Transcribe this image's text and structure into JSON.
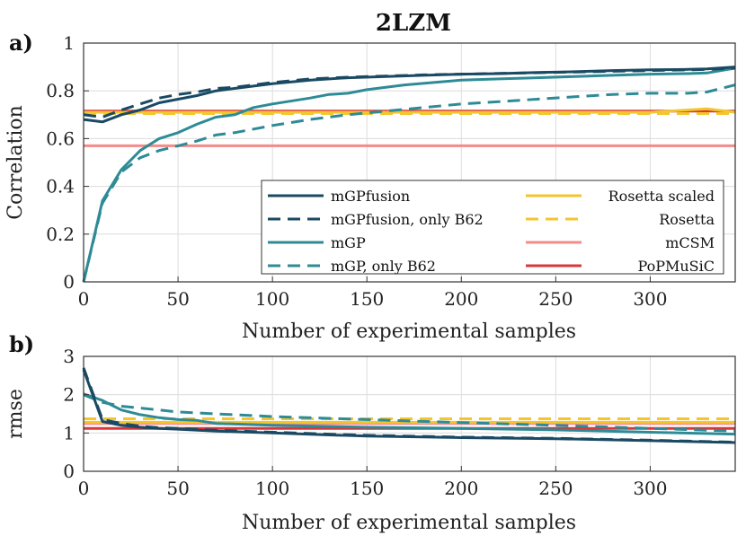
{
  "figure_title": "2LZM",
  "chart_data": [
    {
      "panel": "a)",
      "type": "line",
      "xlabel": "Number of experimental samples",
      "ylabel": "Correlation",
      "xlim": [
        0,
        345
      ],
      "ylim": [
        0,
        1
      ],
      "xticks": [
        "0",
        "50",
        "100",
        "150",
        "200",
        "250",
        "300"
      ],
      "yticks": [
        "0",
        "0.2",
        "0.4",
        "0.6",
        "0.8",
        "1"
      ],
      "grid": true,
      "legend_position": "bottom-right",
      "series": [
        {
          "name": "mGPfusion",
          "color": "#1a4a63",
          "dash": "solid",
          "x": [
            0,
            10,
            20,
            30,
            40,
            50,
            60,
            70,
            80,
            90,
            100,
            120,
            140,
            160,
            180,
            200,
            220,
            240,
            260,
            280,
            300,
            320,
            330,
            345
          ],
          "y": [
            0.68,
            0.67,
            0.7,
            0.72,
            0.75,
            0.765,
            0.78,
            0.8,
            0.81,
            0.82,
            0.83,
            0.845,
            0.855,
            0.86,
            0.865,
            0.87,
            0.872,
            0.877,
            0.88,
            0.885,
            0.888,
            0.89,
            0.892,
            0.9
          ]
        },
        {
          "name": "mGPfusion, only B62",
          "color": "#1a4a63",
          "dash": "dashed",
          "x": [
            0,
            10,
            20,
            30,
            40,
            50,
            60,
            70,
            80,
            90,
            100,
            120,
            140,
            160,
            180,
            200,
            220,
            240,
            260,
            280,
            300,
            320,
            330,
            345
          ],
          "y": [
            0.7,
            0.69,
            0.72,
            0.745,
            0.77,
            0.785,
            0.795,
            0.81,
            0.815,
            0.825,
            0.835,
            0.85,
            0.857,
            0.862,
            0.867,
            0.87,
            0.873,
            0.876,
            0.879,
            0.882,
            0.885,
            0.888,
            0.89,
            0.895
          ]
        },
        {
          "name": "mGP",
          "color": "#2e8b96",
          "dash": "solid",
          "x": [
            0,
            10,
            20,
            30,
            40,
            50,
            60,
            70,
            80,
            90,
            100,
            120,
            130,
            140,
            150,
            170,
            200,
            220,
            240,
            260,
            280,
            300,
            320,
            330,
            345
          ],
          "y": [
            0.0,
            0.34,
            0.47,
            0.55,
            0.6,
            0.625,
            0.66,
            0.69,
            0.7,
            0.73,
            0.745,
            0.77,
            0.785,
            0.79,
            0.805,
            0.825,
            0.845,
            0.85,
            0.855,
            0.86,
            0.865,
            0.87,
            0.872,
            0.875,
            0.895
          ]
        },
        {
          "name": "mGP, only B62",
          "color": "#2e8b96",
          "dash": "dashed",
          "x": [
            0,
            10,
            20,
            30,
            40,
            50,
            60,
            70,
            80,
            90,
            100,
            120,
            140,
            160,
            180,
            200,
            220,
            240,
            260,
            280,
            300,
            320,
            330,
            345
          ],
          "y": [
            0.0,
            0.33,
            0.46,
            0.52,
            0.55,
            0.57,
            0.59,
            0.615,
            0.625,
            0.64,
            0.655,
            0.68,
            0.7,
            0.715,
            0.73,
            0.745,
            0.755,
            0.765,
            0.775,
            0.785,
            0.79,
            0.79,
            0.795,
            0.825
          ]
        },
        {
          "name": "Rosetta scaled",
          "color": "#f3c52e",
          "dash": "solid",
          "x": [
            0,
            50,
            100,
            150,
            200,
            250,
            300,
            320,
            330,
            340,
            345
          ],
          "y": [
            0.71,
            0.71,
            0.71,
            0.71,
            0.71,
            0.71,
            0.71,
            0.72,
            0.725,
            0.715,
            0.71
          ]
        },
        {
          "name": "Rosetta",
          "color": "#f3c52e",
          "dash": "dashed",
          "x": [
            0,
            345
          ],
          "y": [
            0.705,
            0.705
          ]
        },
        {
          "name": "mCSM",
          "color": "#f48b89",
          "dash": "solid",
          "x": [
            0,
            345
          ],
          "y": [
            0.57,
            0.57
          ]
        },
        {
          "name": "PoPMuSiC",
          "color": "#d8383c",
          "dash": "solid",
          "x": [
            0,
            345
          ],
          "y": [
            0.715,
            0.715
          ]
        }
      ]
    },
    {
      "panel": "b)",
      "type": "line",
      "xlabel": "Number of experimental samples",
      "ylabel": "rmse",
      "xlim": [
        0,
        345
      ],
      "ylim": [
        0,
        3
      ],
      "xticks": [
        "0",
        "50",
        "100",
        "150",
        "200",
        "250",
        "300"
      ],
      "yticks": [
        "0",
        "1",
        "2",
        "3"
      ],
      "grid": true,
      "series": [
        {
          "name": "mGPfusion",
          "color": "#1a4a63",
          "dash": "solid",
          "x": [
            0,
            10,
            20,
            30,
            40,
            50,
            70,
            100,
            130,
            150,
            200,
            250,
            300,
            345
          ],
          "y": [
            2.65,
            1.3,
            1.2,
            1.15,
            1.12,
            1.1,
            1.05,
            1.0,
            0.95,
            0.92,
            0.88,
            0.85,
            0.8,
            0.75
          ]
        },
        {
          "name": "mGPfusion, only B62",
          "color": "#1a4a63",
          "dash": "dashed",
          "x": [
            0,
            10,
            20,
            30,
            40,
            50,
            70,
            100,
            130,
            150,
            200,
            250,
            300,
            345
          ],
          "y": [
            2.7,
            1.35,
            1.25,
            1.18,
            1.14,
            1.12,
            1.07,
            1.02,
            0.97,
            0.94,
            0.89,
            0.86,
            0.81,
            0.76
          ]
        },
        {
          "name": "mGP",
          "color": "#2e8b96",
          "dash": "solid",
          "x": [
            0,
            10,
            20,
            30,
            40,
            50,
            60,
            70,
            100,
            150,
            200,
            250,
            300,
            345
          ],
          "y": [
            2.02,
            1.85,
            1.6,
            1.48,
            1.4,
            1.35,
            1.33,
            1.25,
            1.2,
            1.15,
            1.12,
            1.08,
            1.02,
            0.97
          ]
        },
        {
          "name": "mGP, only B62",
          "color": "#2e8b96",
          "dash": "dashed",
          "x": [
            0,
            10,
            20,
            30,
            40,
            50,
            70,
            100,
            150,
            200,
            250,
            300,
            345
          ],
          "y": [
            2.0,
            1.8,
            1.7,
            1.65,
            1.6,
            1.55,
            1.5,
            1.43,
            1.35,
            1.27,
            1.2,
            1.12,
            1.05
          ]
        },
        {
          "name": "Rosetta scaled",
          "color": "#f3c52e",
          "dash": "solid",
          "x": [
            0,
            345
          ],
          "y": [
            1.28,
            1.28
          ]
        },
        {
          "name": "Rosetta",
          "color": "#f3c52e",
          "dash": "dashed",
          "x": [
            0,
            345
          ],
          "y": [
            1.37,
            1.37
          ]
        },
        {
          "name": "mCSM",
          "color": "#f48b89",
          "dash": "solid",
          "x": [
            0,
            345
          ],
          "y": [
            1.25,
            1.25
          ]
        },
        {
          "name": "PoPMuSiC",
          "color": "#d8383c",
          "dash": "solid",
          "x": [
            0,
            345
          ],
          "y": [
            1.12,
            1.12
          ]
        }
      ]
    }
  ]
}
